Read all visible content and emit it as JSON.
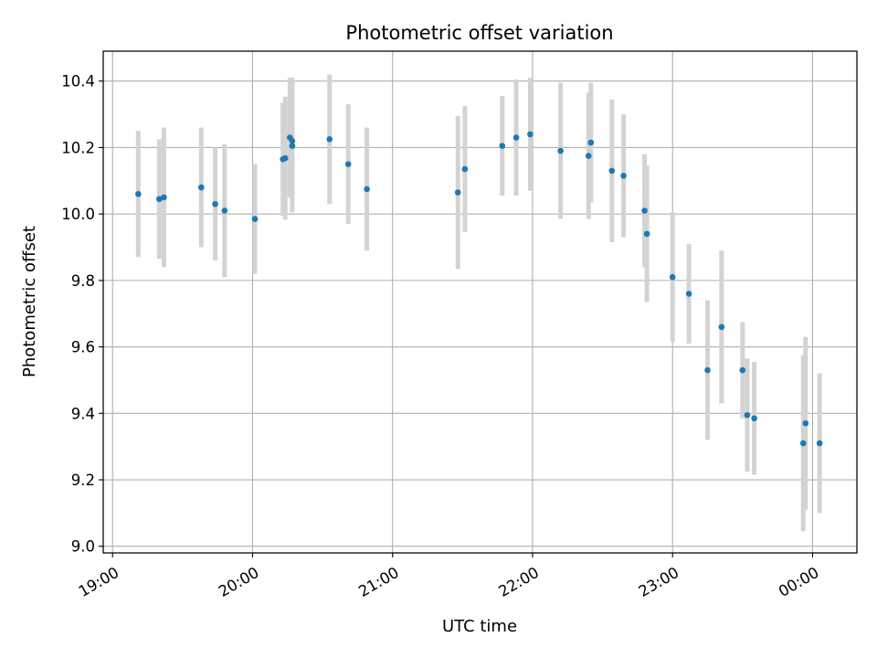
{
  "chart_data": {
    "type": "scatter",
    "title": "Photometric offset variation",
    "xlabel": "UTC time",
    "ylabel": "Photometric offset",
    "x_ticks": [
      "19:00",
      "20:00",
      "21:00",
      "22:00",
      "23:00",
      "00:00"
    ],
    "y_ticks": [
      "9.0",
      "9.2",
      "9.4",
      "9.6",
      "9.8",
      "10.0",
      "10.2",
      "10.4"
    ],
    "xlim": [
      "18:56",
      "00:19"
    ],
    "ylim": [
      8.98,
      10.49
    ],
    "grid": true,
    "colors": {
      "points": "#1f77b4",
      "errorbars": "#d3d3d3",
      "grid": "#b0b0b0"
    },
    "series": [
      {
        "points": [
          {
            "x": "19:11",
            "y": 10.06,
            "err": 0.19
          },
          {
            "x": "19:20",
            "y": 10.045,
            "err": 0.18
          },
          {
            "x": "19:22",
            "y": 10.05,
            "err": 0.21
          },
          {
            "x": "19:38",
            "y": 10.08,
            "err": 0.18
          },
          {
            "x": "19:44",
            "y": 10.03,
            "err": 0.17
          },
          {
            "x": "19:48",
            "y": 10.01,
            "err": 0.2
          },
          {
            "x": "20:01",
            "y": 9.985,
            "err": 0.165
          },
          {
            "x": "20:13",
            "y": 10.165,
            "err": 0.17
          },
          {
            "x": "20:14",
            "y": 10.168,
            "err": 0.185
          },
          {
            "x": "20:16",
            "y": 10.23,
            "err": 0.18
          },
          {
            "x": "20:17",
            "y": 10.22,
            "err": 0.19
          },
          {
            "x": "20:17",
            "y": 10.205,
            "err": 0.2
          },
          {
            "x": "20:33",
            "y": 10.225,
            "err": 0.195
          },
          {
            "x": "20:41",
            "y": 10.15,
            "err": 0.18
          },
          {
            "x": "20:49",
            "y": 10.075,
            "err": 0.185
          },
          {
            "x": "21:28",
            "y": 10.065,
            "err": 0.23
          },
          {
            "x": "21:31",
            "y": 10.135,
            "err": 0.19
          },
          {
            "x": "21:47",
            "y": 10.205,
            "err": 0.15
          },
          {
            "x": "21:53",
            "y": 10.23,
            "err": 0.175
          },
          {
            "x": "21:59",
            "y": 10.24,
            "err": 0.17
          },
          {
            "x": "22:12",
            "y": 10.19,
            "err": 0.205
          },
          {
            "x": "22:24",
            "y": 10.175,
            "err": 0.19
          },
          {
            "x": "22:25",
            "y": 10.215,
            "err": 0.18
          },
          {
            "x": "22:34",
            "y": 10.13,
            "err": 0.215
          },
          {
            "x": "22:39",
            "y": 10.115,
            "err": 0.185
          },
          {
            "x": "22:48",
            "y": 10.01,
            "err": 0.17
          },
          {
            "x": "22:49",
            "y": 9.94,
            "err": 0.205
          },
          {
            "x": "23:00",
            "y": 9.81,
            "err": 0.195
          },
          {
            "x": "23:07",
            "y": 9.76,
            "err": 0.15
          },
          {
            "x": "23:15",
            "y": 9.53,
            "err": 0.21
          },
          {
            "x": "23:21",
            "y": 9.66,
            "err": 0.23
          },
          {
            "x": "23:30",
            "y": 9.53,
            "err": 0.145
          },
          {
            "x": "23:32",
            "y": 9.395,
            "err": 0.17
          },
          {
            "x": "23:35",
            "y": 9.385,
            "err": 0.17
          },
          {
            "x": "23:56",
            "y": 9.31,
            "err": 0.265
          },
          {
            "x": "23:57",
            "y": 9.37,
            "err": 0.26
          },
          {
            "x": "00:03",
            "y": 9.31,
            "err": 0.21
          }
        ]
      }
    ]
  }
}
